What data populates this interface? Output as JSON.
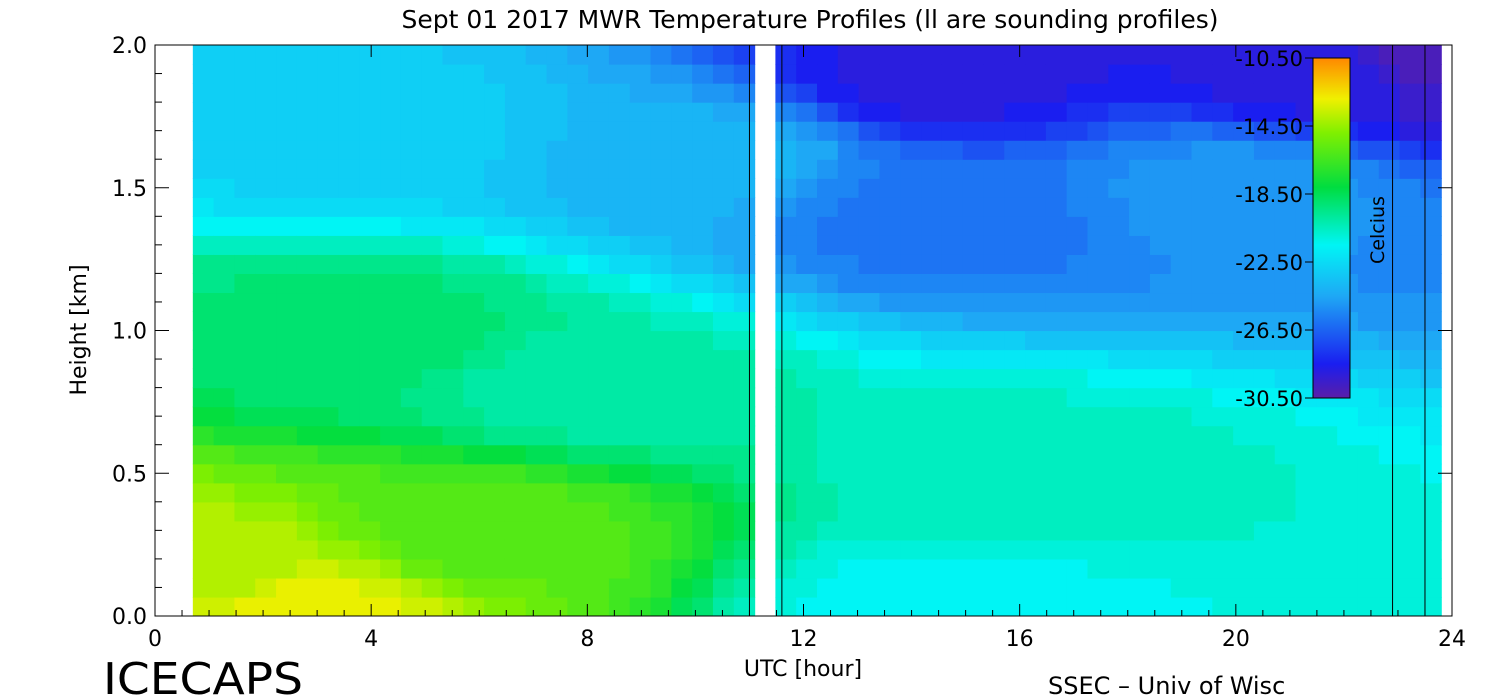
{
  "chart_data": {
    "type": "heatmap",
    "title": "Sept 01 2017 MWR Temperature Profiles (ll are sounding profiles)",
    "xlabel": "UTC [hour]",
    "ylabel": "Height [km]",
    "xlim": [
      0,
      24
    ],
    "ylim": [
      0,
      2.0
    ],
    "x_ticks": [
      "0",
      "4",
      "8",
      "12",
      "16",
      "20",
      "24"
    ],
    "y_ticks": [
      "0.0",
      "0.5",
      "1.0",
      "1.5",
      "2.0"
    ],
    "data_x_range": [
      0.7,
      23.8
    ],
    "missing_data_x": [
      11.0,
      11.6
    ],
    "sounding_profile_times": [
      11.0,
      11.6,
      22.9,
      23.5
    ],
    "colorbar": {
      "label": "Celcius",
      "ticks": [
        "-10.50",
        "-14.50",
        "-18.50",
        "-22.50",
        "-26.50",
        "-30.50"
      ],
      "range": [
        -30.5,
        -10.5
      ]
    },
    "approx_values_celsius": [
      {
        "x_hour": 2.5,
        "height_km": 0.02,
        "value": -13
      },
      {
        "x_hour": 1.0,
        "height_km": 0.15,
        "value": -14
      },
      {
        "x_hour": 6.0,
        "height_km": 0.3,
        "value": -16
      },
      {
        "x_hour": 4.0,
        "height_km": 1.0,
        "value": -19
      },
      {
        "x_hour": 8.0,
        "height_km": 0.8,
        "value": -20
      },
      {
        "x_hour": 14.7,
        "height_km": 0.02,
        "value": -21.5
      },
      {
        "x_hour": 16.0,
        "height_km": 0.5,
        "value": -20.5
      },
      {
        "x_hour": 4.0,
        "height_km": 1.7,
        "value": -23
      },
      {
        "x_hour": 10.0,
        "height_km": 1.6,
        "value": -24
      },
      {
        "x_hour": 14.5,
        "height_km": 1.4,
        "value": -26
      },
      {
        "x_hour": 14.7,
        "height_km": 1.9,
        "value": -29
      },
      {
        "x_hour": 20.0,
        "height_km": 1.5,
        "value": -25
      },
      {
        "x_hour": 22.0,
        "height_km": 1.9,
        "value": -29
      },
      {
        "x_hour": 23.5,
        "height_km": 1.95,
        "value": -30
      }
    ]
  },
  "watermark_left": "ICECAPS",
  "watermark_right": "SSEC – Univ of Wisc"
}
